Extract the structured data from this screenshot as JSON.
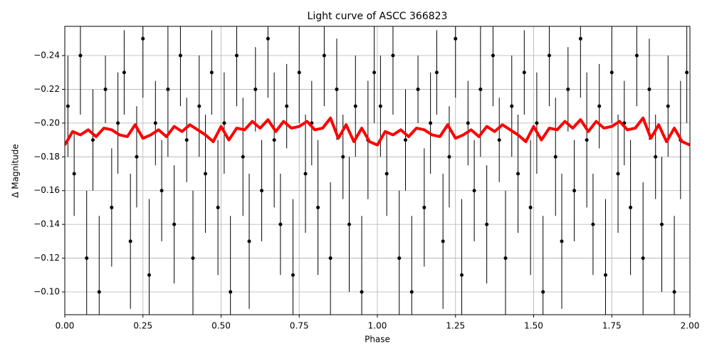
{
  "chart_data": {
    "type": "scatter",
    "title": "Light curve of ASCC 366823",
    "xlabel": "Phase",
    "ylabel": "Δ Magnitude",
    "xlim": [
      0,
      2
    ],
    "ylim": [
      -0.0865,
      -0.2573
    ],
    "grid": true,
    "xticks": [
      {
        "value": 0,
        "label": "0.00"
      },
      {
        "value": 0.25,
        "label": "0.25"
      },
      {
        "value": 0.5,
        "label": "0.50"
      },
      {
        "value": 0.75,
        "label": "0.75"
      },
      {
        "value": 1,
        "label": "1.00"
      },
      {
        "value": 1.25,
        "label": "1.25"
      },
      {
        "value": 1.5,
        "label": "1.50"
      },
      {
        "value": 1.75,
        "label": "1.75"
      },
      {
        "value": 2,
        "label": "2.00"
      }
    ],
    "yticks": [
      {
        "value": -0.24,
        "label": "−0.24"
      },
      {
        "value": -0.22,
        "label": "−0.22"
      },
      {
        "value": -0.2,
        "label": "−0.20"
      },
      {
        "value": -0.18,
        "label": "−0.18"
      },
      {
        "value": -0.16,
        "label": "−0.16"
      },
      {
        "value": -0.14,
        "label": "−0.14"
      },
      {
        "value": -0.12,
        "label": "−0.12"
      },
      {
        "value": -0.1,
        "label": "−0.10"
      }
    ],
    "series": [
      {
        "type": "errorbar",
        "color": "#000000",
        "x": [
          0.01,
          0.03,
          0.05,
          0.07,
          0.09,
          0.11,
          0.13,
          0.15,
          0.17,
          0.19,
          0.21,
          0.23,
          0.25,
          0.27,
          0.29,
          0.31,
          0.33,
          0.35,
          0.37,
          0.39,
          0.41,
          0.43,
          0.45,
          0.47,
          0.49,
          0.51,
          0.53,
          0.55,
          0.57,
          0.59,
          0.61,
          0.63,
          0.65,
          0.67,
          0.69,
          0.71,
          0.73,
          0.75,
          0.77,
          0.79,
          0.81,
          0.83,
          0.85,
          0.87,
          0.89,
          0.91,
          0.93,
          0.95,
          0.97,
          0.99,
          1.01,
          1.03,
          1.05,
          1.07,
          1.09,
          1.11,
          1.13,
          1.15,
          1.17,
          1.19,
          1.21,
          1.23,
          1.25,
          1.27,
          1.29,
          1.31,
          1.33,
          1.35,
          1.37,
          1.39,
          1.41,
          1.43,
          1.45,
          1.47,
          1.49,
          1.51,
          1.53,
          1.55,
          1.57,
          1.59,
          1.61,
          1.63,
          1.65,
          1.67,
          1.69,
          1.71,
          1.73,
          1.75,
          1.77,
          1.79,
          1.81,
          1.83,
          1.85,
          1.87,
          1.89,
          1.91,
          1.93,
          1.95,
          1.97,
          1.99
        ],
        "values": [
          -0.21,
          -0.17,
          -0.24,
          -0.12,
          -0.19,
          -0.1,
          -0.22,
          -0.15,
          -0.2,
          -0.23,
          -0.13,
          -0.18,
          -0.25,
          -0.11,
          -0.2,
          -0.16,
          -0.22,
          -0.14,
          -0.24,
          -0.19,
          -0.12,
          -0.21,
          -0.17,
          -0.23,
          -0.15,
          -0.2,
          -0.1,
          -0.24,
          -0.18,
          -0.13,
          -0.22,
          -0.16,
          -0.25,
          -0.19,
          -0.14,
          -0.21,
          -0.11,
          -0.23,
          -0.17,
          -0.2,
          -0.15,
          -0.24,
          -0.12,
          -0.22,
          -0.18,
          -0.14,
          -0.21,
          -0.1,
          -0.19,
          -0.23,
          -0.21,
          -0.17,
          -0.24,
          -0.12,
          -0.19,
          -0.1,
          -0.22,
          -0.15,
          -0.2,
          -0.23,
          -0.13,
          -0.18,
          -0.25,
          -0.11,
          -0.2,
          -0.16,
          -0.22,
          -0.14,
          -0.24,
          -0.19,
          -0.12,
          -0.21,
          -0.17,
          -0.23,
          -0.15,
          -0.2,
          -0.1,
          -0.24,
          -0.18,
          -0.13,
          -0.22,
          -0.16,
          -0.25,
          -0.19,
          -0.14,
          -0.21,
          -0.11,
          -0.23,
          -0.17,
          -0.2,
          -0.15,
          -0.24,
          -0.12,
          -0.22,
          -0.18,
          -0.14,
          -0.21,
          -0.1,
          -0.19,
          -0.23
        ],
        "errors": [
          0.03,
          0.025,
          0.035,
          0.04,
          0.03,
          0.045,
          0.02,
          0.035,
          0.03,
          0.025,
          0.04,
          0.03,
          0.035,
          0.045,
          0.025,
          0.03,
          0.04,
          0.035,
          0.03,
          0.025,
          0.04,
          0.03,
          0.035,
          0.025,
          0.04,
          0.03,
          0.045,
          0.03,
          0.035,
          0.04,
          0.025,
          0.03,
          0.035,
          0.04,
          0.03,
          0.025,
          0.045,
          0.03,
          0.035,
          0.025,
          0.04,
          0.03,
          0.045,
          0.03,
          0.025,
          0.04,
          0.03,
          0.045,
          0.035,
          0.03,
          0.03,
          0.025,
          0.035,
          0.04,
          0.03,
          0.045,
          0.02,
          0.035,
          0.03,
          0.025,
          0.04,
          0.03,
          0.035,
          0.045,
          0.025,
          0.03,
          0.04,
          0.035,
          0.03,
          0.025,
          0.04,
          0.03,
          0.035,
          0.025,
          0.04,
          0.03,
          0.045,
          0.03,
          0.035,
          0.04,
          0.025,
          0.03,
          0.035,
          0.04,
          0.03,
          0.025,
          0.045,
          0.03,
          0.035,
          0.025,
          0.04,
          0.03,
          0.045,
          0.03,
          0.025,
          0.04,
          0.03,
          0.045,
          0.035,
          0.03
        ]
      },
      {
        "type": "line",
        "color": "#ff0000",
        "x": [
          0,
          0.025,
          0.05,
          0.075,
          0.1,
          0.125,
          0.15,
          0.175,
          0.2,
          0.225,
          0.25,
          0.275,
          0.3,
          0.325,
          0.35,
          0.375,
          0.4,
          0.425,
          0.45,
          0.475,
          0.5,
          0.525,
          0.55,
          0.575,
          0.6,
          0.625,
          0.65,
          0.675,
          0.7,
          0.725,
          0.75,
          0.775,
          0.8,
          0.825,
          0.85,
          0.875,
          0.9,
          0.925,
          0.95,
          0.975,
          1,
          1.025,
          1.05,
          1.075,
          1.1,
          1.125,
          1.15,
          1.175,
          1.2,
          1.225,
          1.25,
          1.275,
          1.3,
          1.325,
          1.35,
          1.375,
          1.4,
          1.425,
          1.45,
          1.475,
          1.5,
          1.525,
          1.55,
          1.575,
          1.6,
          1.625,
          1.65,
          1.675,
          1.7,
          1.725,
          1.75,
          1.775,
          1.8,
          1.825,
          1.85,
          1.875,
          1.9,
          1.925,
          1.95,
          1.975,
          2
        ],
        "values": [
          -0.187,
          -0.195,
          -0.193,
          -0.196,
          -0.192,
          -0.197,
          -0.196,
          -0.193,
          -0.192,
          -0.199,
          -0.191,
          -0.193,
          -0.196,
          -0.192,
          -0.198,
          -0.195,
          -0.199,
          -0.196,
          -0.193,
          -0.189,
          -0.198,
          -0.19,
          -0.197,
          -0.196,
          -0.201,
          -0.197,
          -0.202,
          -0.195,
          -0.201,
          -0.197,
          -0.198,
          -0.201,
          -0.196,
          -0.197,
          -0.203,
          -0.191,
          -0.199,
          -0.189,
          -0.197,
          -0.189,
          -0.187,
          -0.195,
          -0.193,
          -0.196,
          -0.192,
          -0.197,
          -0.196,
          -0.193,
          -0.192,
          -0.199,
          -0.191,
          -0.193,
          -0.196,
          -0.192,
          -0.198,
          -0.195,
          -0.199,
          -0.196,
          -0.193,
          -0.189,
          -0.198,
          -0.19,
          -0.197,
          -0.196,
          -0.201,
          -0.197,
          -0.202,
          -0.195,
          -0.201,
          -0.197,
          -0.198,
          -0.201,
          -0.196,
          -0.197,
          -0.203,
          -0.191,
          -0.199,
          -0.189,
          -0.197,
          -0.189,
          -0.187
        ]
      }
    ]
  }
}
